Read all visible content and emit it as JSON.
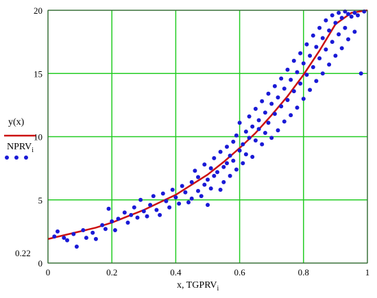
{
  "chart_data": {
    "type": "scatter",
    "xlabel": "x, TGPRV",
    "xlabel_subscript": "i",
    "xlim": [
      0,
      1
    ],
    "ylim": [
      0,
      20
    ],
    "xticks": [
      "0",
      "0.2",
      "0.4",
      "0.6",
      "0.8",
      "1"
    ],
    "yticks": [
      "0",
      "5",
      "10",
      "15",
      "20"
    ],
    "xtick_values": [
      0,
      0.2,
      0.4,
      0.6,
      0.8,
      1
    ],
    "ytick_values": [
      0,
      5,
      10,
      15,
      20
    ],
    "extra_label": "0.22",
    "grid": true,
    "grid_color": "#22cc22",
    "legend": {
      "placement": "left",
      "entries": [
        {
          "label": "y(x)",
          "marker": "line",
          "color": "#cc1111"
        },
        {
          "label": "NPRV",
          "subscript": "i",
          "marker": "dots",
          "color": "#1a1ad6"
        }
      ]
    },
    "series": [
      {
        "name": "y(x)",
        "type": "line",
        "color": "#cc1111",
        "x": [
          0,
          0.05,
          0.1,
          0.15,
          0.2,
          0.25,
          0.3,
          0.35,
          0.4,
          0.45,
          0.5,
          0.55,
          0.6,
          0.65,
          0.7,
          0.75,
          0.8,
          0.85,
          0.9,
          0.95,
          1.0
        ],
        "y": [
          1.9,
          2.2,
          2.5,
          2.8,
          3.2,
          3.7,
          4.2,
          4.8,
          5.4,
          6.2,
          7.0,
          8.0,
          9.1,
          10.3,
          11.7,
          13.2,
          14.9,
          16.8,
          18.9,
          19.8,
          20.0
        ]
      },
      {
        "name": "NPRV",
        "type": "scatter",
        "color": "#1a1ad6",
        "points": [
          [
            0.02,
            2.1
          ],
          [
            0.03,
            2.5
          ],
          [
            0.05,
            2.0
          ],
          [
            0.06,
            1.8
          ],
          [
            0.08,
            2.3
          ],
          [
            0.09,
            1.3
          ],
          [
            0.11,
            2.6
          ],
          [
            0.12,
            2.0
          ],
          [
            0.14,
            2.4
          ],
          [
            0.15,
            1.9
          ],
          [
            0.17,
            3.0
          ],
          [
            0.18,
            2.7
          ],
          [
            0.19,
            4.3
          ],
          [
            0.2,
            3.3
          ],
          [
            0.21,
            2.6
          ],
          [
            0.22,
            3.5
          ],
          [
            0.24,
            4.0
          ],
          [
            0.25,
            3.2
          ],
          [
            0.26,
            3.8
          ],
          [
            0.27,
            4.4
          ],
          [
            0.28,
            3.6
          ],
          [
            0.29,
            5.0
          ],
          [
            0.3,
            4.1
          ],
          [
            0.31,
            3.7
          ],
          [
            0.32,
            4.6
          ],
          [
            0.33,
            5.3
          ],
          [
            0.34,
            4.2
          ],
          [
            0.35,
            3.8
          ],
          [
            0.36,
            5.5
          ],
          [
            0.37,
            4.9
          ],
          [
            0.38,
            4.4
          ],
          [
            0.39,
            5.8
          ],
          [
            0.4,
            5.2
          ],
          [
            0.41,
            4.7
          ],
          [
            0.42,
            6.1
          ],
          [
            0.43,
            5.6
          ],
          [
            0.44,
            4.8
          ],
          [
            0.45,
            6.4
          ],
          [
            0.45,
            5.1
          ],
          [
            0.46,
            7.3
          ],
          [
            0.47,
            5.7
          ],
          [
            0.47,
            6.8
          ],
          [
            0.48,
            5.3
          ],
          [
            0.49,
            6.2
          ],
          [
            0.49,
            7.8
          ],
          [
            0.5,
            4.6
          ],
          [
            0.5,
            6.6
          ],
          [
            0.51,
            7.5
          ],
          [
            0.51,
            5.9
          ],
          [
            0.52,
            8.3
          ],
          [
            0.52,
            6.9
          ],
          [
            0.53,
            7.2
          ],
          [
            0.54,
            5.8
          ],
          [
            0.54,
            8.8
          ],
          [
            0.55,
            7.6
          ],
          [
            0.55,
            6.4
          ],
          [
            0.56,
            9.2
          ],
          [
            0.56,
            7.9
          ],
          [
            0.57,
            8.5
          ],
          [
            0.57,
            6.9
          ],
          [
            0.58,
            9.6
          ],
          [
            0.58,
            8.1
          ],
          [
            0.59,
            10.1
          ],
          [
            0.59,
            7.4
          ],
          [
            0.6,
            8.9
          ],
          [
            0.6,
            11.1
          ],
          [
            0.61,
            9.4
          ],
          [
            0.61,
            7.9
          ],
          [
            0.62,
            10.4
          ],
          [
            0.62,
            8.6
          ],
          [
            0.63,
            11.6
          ],
          [
            0.63,
            9.9
          ],
          [
            0.64,
            10.8
          ],
          [
            0.64,
            8.4
          ],
          [
            0.65,
            12.2
          ],
          [
            0.65,
            9.7
          ],
          [
            0.66,
            11.3
          ],
          [
            0.66,
            10.6
          ],
          [
            0.67,
            12.8
          ],
          [
            0.67,
            9.4
          ],
          [
            0.68,
            11.9
          ],
          [
            0.68,
            10.3
          ],
          [
            0.69,
            13.4
          ],
          [
            0.69,
            11.1
          ],
          [
            0.7,
            12.6
          ],
          [
            0.7,
            9.9
          ],
          [
            0.71,
            14.0
          ],
          [
            0.71,
            11.8
          ],
          [
            0.72,
            13.1
          ],
          [
            0.72,
            10.5
          ],
          [
            0.73,
            14.6
          ],
          [
            0.73,
            12.4
          ],
          [
            0.74,
            13.8
          ],
          [
            0.74,
            11.2
          ],
          [
            0.75,
            15.3
          ],
          [
            0.75,
            12.9
          ],
          [
            0.76,
            14.5
          ],
          [
            0.76,
            11.7
          ],
          [
            0.77,
            16.0
          ],
          [
            0.77,
            13.6
          ],
          [
            0.78,
            15.1
          ],
          [
            0.78,
            12.3
          ],
          [
            0.79,
            16.6
          ],
          [
            0.79,
            14.2
          ],
          [
            0.8,
            15.8
          ],
          [
            0.8,
            13.0
          ],
          [
            0.81,
            17.3
          ],
          [
            0.81,
            14.9
          ],
          [
            0.82,
            16.4
          ],
          [
            0.82,
            13.7
          ],
          [
            0.83,
            18.0
          ],
          [
            0.83,
            15.5
          ],
          [
            0.84,
            17.1
          ],
          [
            0.84,
            14.4
          ],
          [
            0.85,
            18.6
          ],
          [
            0.85,
            16.2
          ],
          [
            0.86,
            17.8
          ],
          [
            0.86,
            15.0
          ],
          [
            0.87,
            19.2
          ],
          [
            0.87,
            16.9
          ],
          [
            0.88,
            18.4
          ],
          [
            0.88,
            15.7
          ],
          [
            0.89,
            19.6
          ],
          [
            0.89,
            17.5
          ],
          [
            0.9,
            19.0
          ],
          [
            0.9,
            16.4
          ],
          [
            0.91,
            19.8
          ],
          [
            0.91,
            18.1
          ],
          [
            0.92,
            19.4
          ],
          [
            0.92,
            17.0
          ],
          [
            0.93,
            19.9
          ],
          [
            0.93,
            18.6
          ],
          [
            0.94,
            19.7
          ],
          [
            0.94,
            17.7
          ],
          [
            0.95,
            19.5
          ],
          [
            0.96,
            19.8
          ],
          [
            0.96,
            18.3
          ],
          [
            0.97,
            19.6
          ],
          [
            0.98,
            15.0
          ],
          [
            0.99,
            19.9
          ]
        ]
      }
    ]
  }
}
